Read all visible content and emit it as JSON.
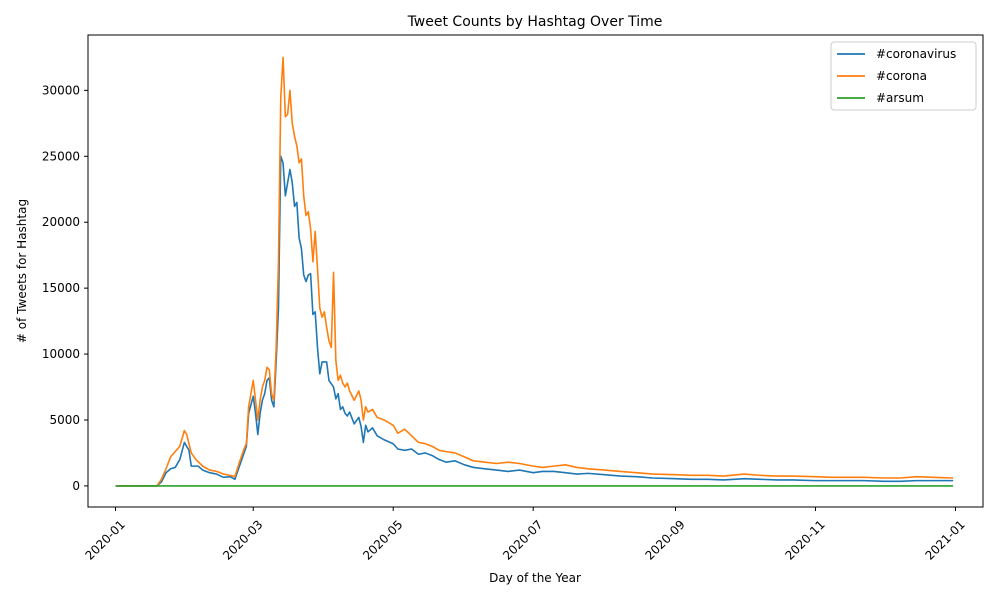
{
  "chart_data": {
    "type": "line",
    "title": "Tweet Counts by Hashtag Over Time",
    "xlabel": "Day of the Year",
    "ylabel": "# of Tweets for Hashtag",
    "xlim": [
      "2019-12-20",
      "2021-01-13"
    ],
    "ylim": [
      -1600,
      34200
    ],
    "grid": false,
    "legend_position": "top-right",
    "x_ticks": [
      "2020-01",
      "2020-03",
      "2020-05",
      "2020-07",
      "2020-09",
      "2020-11",
      "2021-01"
    ],
    "y_ticks": [
      0,
      5000,
      10000,
      15000,
      20000,
      25000,
      30000
    ],
    "series": [
      {
        "name": "#coronavirus",
        "color": "#1f77b4",
        "points": [
          [
            "2020-01-01",
            0
          ],
          [
            "2020-01-19",
            0
          ],
          [
            "2020-01-21",
            300
          ],
          [
            "2020-01-23",
            1000
          ],
          [
            "2020-01-25",
            1300
          ],
          [
            "2020-01-27",
            1400
          ],
          [
            "2020-01-29",
            2000
          ],
          [
            "2020-01-31",
            3300
          ],
          [
            "2020-02-02",
            2700
          ],
          [
            "2020-02-03",
            1500
          ],
          [
            "2020-02-06",
            1500
          ],
          [
            "2020-02-08",
            1200
          ],
          [
            "2020-02-11",
            1000
          ],
          [
            "2020-02-14",
            900
          ],
          [
            "2020-02-17",
            650
          ],
          [
            "2020-02-20",
            700
          ],
          [
            "2020-02-22",
            500
          ],
          [
            "2020-02-24",
            1500
          ],
          [
            "2020-02-26",
            2500
          ],
          [
            "2020-02-27",
            3000
          ],
          [
            "2020-02-28",
            5500
          ],
          [
            "2020-03-01",
            6800
          ],
          [
            "2020-03-02",
            5500
          ],
          [
            "2020-03-03",
            3900
          ],
          [
            "2020-03-04",
            5500
          ],
          [
            "2020-03-05",
            6500
          ],
          [
            "2020-03-06",
            7000
          ],
          [
            "2020-03-07",
            8000
          ],
          [
            "2020-03-08",
            8200
          ],
          [
            "2020-03-09",
            6500
          ],
          [
            "2020-03-10",
            6000
          ],
          [
            "2020-03-11",
            9500
          ],
          [
            "2020-03-12",
            13500
          ],
          [
            "2020-03-13",
            25000
          ],
          [
            "2020-03-14",
            24500
          ],
          [
            "2020-03-15",
            22000
          ],
          [
            "2020-03-16",
            23000
          ],
          [
            "2020-03-17",
            24000
          ],
          [
            "2020-03-18",
            23000
          ],
          [
            "2020-03-19",
            21200
          ],
          [
            "2020-03-20",
            21500
          ],
          [
            "2020-03-21",
            18800
          ],
          [
            "2020-03-22",
            18000
          ],
          [
            "2020-03-23",
            16000
          ],
          [
            "2020-03-24",
            15500
          ],
          [
            "2020-03-25",
            16000
          ],
          [
            "2020-03-26",
            16100
          ],
          [
            "2020-03-27",
            13000
          ],
          [
            "2020-03-28",
            13200
          ],
          [
            "2020-03-29",
            10500
          ],
          [
            "2020-03-30",
            8500
          ],
          [
            "2020-03-31",
            9400
          ],
          [
            "2020-04-02",
            9400
          ],
          [
            "2020-04-03",
            8000
          ],
          [
            "2020-04-05",
            7500
          ],
          [
            "2020-04-06",
            6600
          ],
          [
            "2020-04-07",
            7000
          ],
          [
            "2020-04-08",
            5800
          ],
          [
            "2020-04-09",
            6000
          ],
          [
            "2020-04-10",
            5500
          ],
          [
            "2020-04-11",
            5300
          ],
          [
            "2020-04-12",
            5600
          ],
          [
            "2020-04-14",
            4700
          ],
          [
            "2020-04-16",
            5200
          ],
          [
            "2020-04-17",
            4500
          ],
          [
            "2020-04-18",
            3300
          ],
          [
            "2020-04-19",
            4600
          ],
          [
            "2020-04-20",
            4100
          ],
          [
            "2020-04-22",
            4400
          ],
          [
            "2020-04-24",
            3800
          ],
          [
            "2020-04-27",
            3500
          ],
          [
            "2020-05-01",
            3200
          ],
          [
            "2020-05-03",
            2800
          ],
          [
            "2020-05-06",
            2700
          ],
          [
            "2020-05-09",
            2800
          ],
          [
            "2020-05-12",
            2400
          ],
          [
            "2020-05-15",
            2500
          ],
          [
            "2020-05-18",
            2300
          ],
          [
            "2020-05-21",
            2000
          ],
          [
            "2020-05-24",
            1800
          ],
          [
            "2020-05-28",
            1900
          ],
          [
            "2020-06-01",
            1600
          ],
          [
            "2020-06-05",
            1400
          ],
          [
            "2020-06-10",
            1300
          ],
          [
            "2020-06-15",
            1200
          ],
          [
            "2020-06-20",
            1100
          ],
          [
            "2020-06-25",
            1200
          ],
          [
            "2020-07-01",
            1000
          ],
          [
            "2020-07-05",
            1100
          ],
          [
            "2020-07-10",
            1100
          ],
          [
            "2020-07-15",
            1000
          ],
          [
            "2020-07-20",
            900
          ],
          [
            "2020-07-25",
            950
          ],
          [
            "2020-08-01",
            850
          ],
          [
            "2020-08-08",
            750
          ],
          [
            "2020-08-15",
            700
          ],
          [
            "2020-08-22",
            600
          ],
          [
            "2020-09-01",
            550
          ],
          [
            "2020-09-08",
            500
          ],
          [
            "2020-09-15",
            500
          ],
          [
            "2020-09-22",
            450
          ],
          [
            "2020-10-01",
            550
          ],
          [
            "2020-10-08",
            500
          ],
          [
            "2020-10-15",
            450
          ],
          [
            "2020-10-22",
            450
          ],
          [
            "2020-11-01",
            400
          ],
          [
            "2020-11-08",
            400
          ],
          [
            "2020-11-15",
            400
          ],
          [
            "2020-11-22",
            400
          ],
          [
            "2020-12-01",
            350
          ],
          [
            "2020-12-08",
            350
          ],
          [
            "2020-12-15",
            400
          ],
          [
            "2020-12-22",
            400
          ],
          [
            "2020-12-31",
            400
          ]
        ]
      },
      {
        "name": "#corona",
        "color": "#ff7f0e",
        "points": [
          [
            "2020-01-01",
            0
          ],
          [
            "2020-01-19",
            0
          ],
          [
            "2020-01-21",
            500
          ],
          [
            "2020-01-23",
            1300
          ],
          [
            "2020-01-25",
            2200
          ],
          [
            "2020-01-27",
            2600
          ],
          [
            "2020-01-29",
            3000
          ],
          [
            "2020-01-31",
            4200
          ],
          [
            "2020-02-01",
            3900
          ],
          [
            "2020-02-03",
            2500
          ],
          [
            "2020-02-05",
            2000
          ],
          [
            "2020-02-08",
            1500
          ],
          [
            "2020-02-11",
            1200
          ],
          [
            "2020-02-14",
            1100
          ],
          [
            "2020-02-17",
            900
          ],
          [
            "2020-02-20",
            800
          ],
          [
            "2020-02-22",
            700
          ],
          [
            "2020-02-24",
            1800
          ],
          [
            "2020-02-26",
            2800
          ],
          [
            "2020-02-27",
            3200
          ],
          [
            "2020-02-28",
            6000
          ],
          [
            "2020-03-01",
            8000
          ],
          [
            "2020-03-02",
            6500
          ],
          [
            "2020-03-03",
            5000
          ],
          [
            "2020-03-04",
            6500
          ],
          [
            "2020-03-05",
            7500
          ],
          [
            "2020-03-06",
            8000
          ],
          [
            "2020-03-07",
            9000
          ],
          [
            "2020-03-08",
            8800
          ],
          [
            "2020-03-09",
            7000
          ],
          [
            "2020-03-10",
            6500
          ],
          [
            "2020-03-11",
            10500
          ],
          [
            "2020-03-12",
            17000
          ],
          [
            "2020-03-13",
            29500
          ],
          [
            "2020-03-14",
            32500
          ],
          [
            "2020-03-15",
            28000
          ],
          [
            "2020-03-16",
            28200
          ],
          [
            "2020-03-17",
            30000
          ],
          [
            "2020-03-18",
            27500
          ],
          [
            "2020-03-19",
            26500
          ],
          [
            "2020-03-20",
            25800
          ],
          [
            "2020-03-21",
            24500
          ],
          [
            "2020-03-22",
            24800
          ],
          [
            "2020-03-23",
            22000
          ],
          [
            "2020-03-24",
            20500
          ],
          [
            "2020-03-25",
            20800
          ],
          [
            "2020-03-26",
            19500
          ],
          [
            "2020-03-27",
            17000
          ],
          [
            "2020-03-28",
            19300
          ],
          [
            "2020-03-29",
            16500
          ],
          [
            "2020-03-30",
            13500
          ],
          [
            "2020-03-31",
            12800
          ],
          [
            "2020-04-01",
            13200
          ],
          [
            "2020-04-02",
            12000
          ],
          [
            "2020-04-03",
            11000
          ],
          [
            "2020-04-04",
            10500
          ],
          [
            "2020-04-05",
            16200
          ],
          [
            "2020-04-06",
            9500
          ],
          [
            "2020-04-07",
            8000
          ],
          [
            "2020-04-08",
            8400
          ],
          [
            "2020-04-09",
            7800
          ],
          [
            "2020-04-10",
            7500
          ],
          [
            "2020-04-11",
            7800
          ],
          [
            "2020-04-12",
            7200
          ],
          [
            "2020-04-14",
            6500
          ],
          [
            "2020-04-16",
            7200
          ],
          [
            "2020-04-17",
            6500
          ],
          [
            "2020-04-18",
            5000
          ],
          [
            "2020-04-19",
            6000
          ],
          [
            "2020-04-20",
            5600
          ],
          [
            "2020-04-22",
            5800
          ],
          [
            "2020-04-24",
            5200
          ],
          [
            "2020-04-27",
            5000
          ],
          [
            "2020-05-01",
            4600
          ],
          [
            "2020-05-03",
            4000
          ],
          [
            "2020-05-06",
            4300
          ],
          [
            "2020-05-09",
            3800
          ],
          [
            "2020-05-12",
            3300
          ],
          [
            "2020-05-15",
            3200
          ],
          [
            "2020-05-18",
            3000
          ],
          [
            "2020-05-21",
            2700
          ],
          [
            "2020-05-24",
            2600
          ],
          [
            "2020-05-28",
            2500
          ],
          [
            "2020-06-01",
            2200
          ],
          [
            "2020-06-05",
            1900
          ],
          [
            "2020-06-10",
            1800
          ],
          [
            "2020-06-15",
            1700
          ],
          [
            "2020-06-20",
            1800
          ],
          [
            "2020-06-25",
            1700
          ],
          [
            "2020-07-01",
            1500
          ],
          [
            "2020-07-05",
            1400
          ],
          [
            "2020-07-10",
            1500
          ],
          [
            "2020-07-15",
            1600
          ],
          [
            "2020-07-20",
            1400
          ],
          [
            "2020-07-25",
            1300
          ],
          [
            "2020-08-01",
            1200
          ],
          [
            "2020-08-08",
            1100
          ],
          [
            "2020-08-15",
            1000
          ],
          [
            "2020-08-22",
            900
          ],
          [
            "2020-09-01",
            850
          ],
          [
            "2020-09-08",
            800
          ],
          [
            "2020-09-15",
            800
          ],
          [
            "2020-09-22",
            750
          ],
          [
            "2020-10-01",
            900
          ],
          [
            "2020-10-08",
            800
          ],
          [
            "2020-10-15",
            750
          ],
          [
            "2020-10-22",
            750
          ],
          [
            "2020-11-01",
            700
          ],
          [
            "2020-11-08",
            650
          ],
          [
            "2020-11-15",
            650
          ],
          [
            "2020-11-22",
            650
          ],
          [
            "2020-12-01",
            600
          ],
          [
            "2020-12-08",
            600
          ],
          [
            "2020-12-15",
            700
          ],
          [
            "2020-12-22",
            650
          ],
          [
            "2020-12-31",
            600
          ]
        ]
      },
      {
        "name": "#arsum",
        "color": "#2ca02c",
        "points": [
          [
            "2020-01-01",
            0
          ],
          [
            "2020-12-31",
            0
          ]
        ]
      }
    ]
  }
}
